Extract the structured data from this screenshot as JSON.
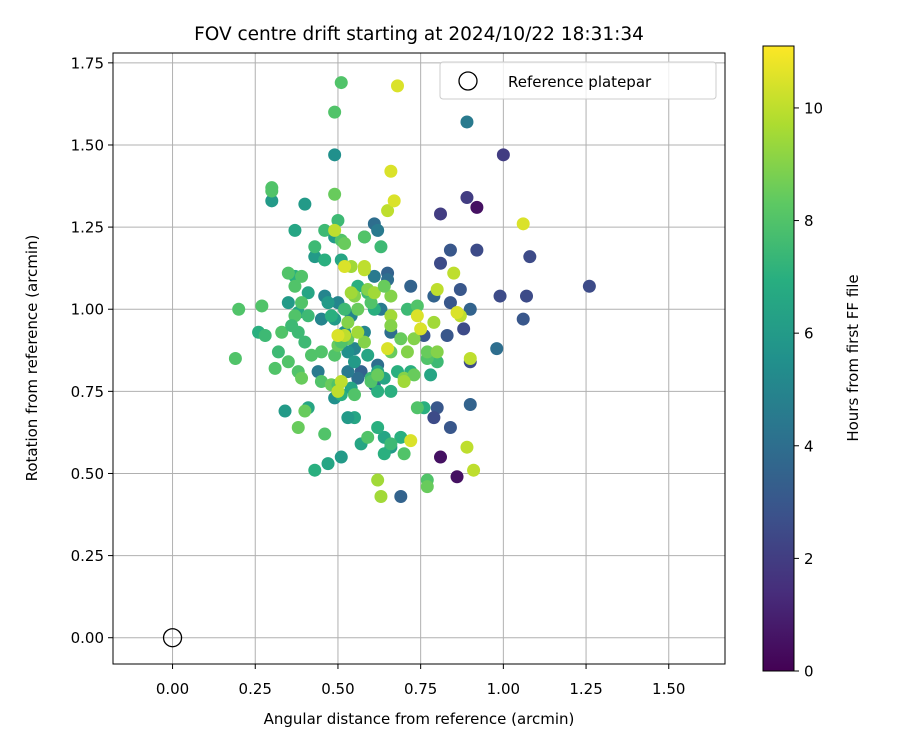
{
  "chart_data": {
    "type": "scatter",
    "title": "FOV centre drift starting at 2024/10/22 18:31:34",
    "xlabel": "Angular distance from reference (arcmin)",
    "ylabel": "Rotation from reference (arcmin)",
    "xlim": [
      -0.18,
      1.67
    ],
    "ylim": [
      -0.08,
      1.78
    ],
    "xticks": [
      "0.00",
      "0.25",
      "0.50",
      "0.75",
      "1.00",
      "1.25",
      "1.50"
    ],
    "yticks": [
      "0.00",
      "0.25",
      "0.50",
      "0.75",
      "1.00",
      "1.25",
      "1.50",
      "1.75"
    ],
    "grid": true,
    "legend": {
      "position": "top-right",
      "entries": [
        "Reference platepar"
      ]
    },
    "reference": {
      "x": 0.0,
      "y": 0.0
    },
    "colorbar": {
      "label": "Hours from first FF file",
      "colormap": "viridis",
      "range": [
        0,
        11.1
      ],
      "ticks": [
        "0",
        "2",
        "4",
        "6",
        "8",
        "10"
      ]
    },
    "points": [
      [
        0.92,
        1.31,
        0.5
      ],
      [
        0.81,
        0.55,
        0.5
      ],
      [
        0.86,
        0.49,
        0.5
      ],
      [
        0.89,
        1.34,
        2.0
      ],
      [
        1.0,
        1.47,
        2.0
      ],
      [
        0.81,
        1.29,
        2.0
      ],
      [
        1.26,
        1.07,
        2.5
      ],
      [
        1.08,
        1.16,
        2.5
      ],
      [
        1.07,
        1.04,
        2.5
      ],
      [
        1.06,
        0.97,
        3.0
      ],
      [
        0.99,
        1.04,
        2.5
      ],
      [
        0.92,
        1.18,
        2.5
      ],
      [
        0.84,
        1.18,
        3.0
      ],
      [
        0.81,
        1.14,
        2.5
      ],
      [
        0.87,
        1.06,
        3.0
      ],
      [
        0.84,
        1.02,
        3.0
      ],
      [
        0.9,
        1.0,
        3.5
      ],
      [
        0.88,
        0.94,
        2.5
      ],
      [
        0.9,
        0.84,
        2.5
      ],
      [
        0.83,
        0.92,
        3.0
      ],
      [
        0.8,
        0.7,
        3.0
      ],
      [
        0.79,
        0.67,
        2.5
      ],
      [
        0.84,
        0.64,
        3.0
      ],
      [
        0.9,
        0.71,
        3.5
      ],
      [
        0.98,
        0.88,
        4.0
      ],
      [
        0.69,
        0.43,
        3.5
      ],
      [
        0.89,
        1.57,
        4.5
      ],
      [
        0.79,
        1.04,
        3.5
      ],
      [
        0.76,
        0.92,
        3.0
      ],
      [
        0.72,
        1.07,
        3.5
      ],
      [
        0.65,
        1.11,
        3.5
      ],
      [
        0.61,
        1.26,
        4.0
      ],
      [
        0.62,
        1.24,
        4.5
      ],
      [
        0.58,
        1.22,
        4.0
      ],
      [
        0.61,
        1.1,
        4.5
      ],
      [
        0.65,
        1.09,
        4.0
      ],
      [
        0.63,
        1.0,
        4.5
      ],
      [
        0.66,
        0.93,
        4.0
      ],
      [
        0.62,
        0.83,
        4.0
      ],
      [
        0.61,
        0.77,
        4.0
      ],
      [
        0.57,
        0.81,
        3.5
      ],
      [
        0.56,
        0.79,
        4.0
      ],
      [
        0.53,
        0.81,
        4.5
      ],
      [
        0.55,
        0.88,
        5.0
      ],
      [
        0.58,
        0.93,
        5.0
      ],
      [
        0.54,
        0.98,
        5.0
      ],
      [
        0.5,
        1.02,
        5.0
      ],
      [
        0.46,
        1.04,
        5.0
      ],
      [
        0.45,
        0.97,
        5.0
      ],
      [
        0.44,
        0.81,
        4.5
      ],
      [
        0.49,
        1.47,
        5.5
      ],
      [
        0.3,
        1.33,
        6.0
      ],
      [
        0.4,
        1.32,
        6.0
      ],
      [
        0.37,
        1.24,
        6.5
      ],
      [
        0.49,
        1.22,
        6.0
      ],
      [
        0.51,
        1.15,
        6.5
      ],
      [
        0.43,
        1.16,
        6.0
      ],
      [
        0.46,
        1.15,
        7.0
      ],
      [
        0.37,
        1.1,
        7.0
      ],
      [
        0.41,
        1.05,
        6.5
      ],
      [
        0.35,
        1.02,
        6.0
      ],
      [
        0.38,
        0.99,
        6.5
      ],
      [
        0.47,
        1.02,
        6.0
      ],
      [
        0.49,
        0.97,
        6.0
      ],
      [
        0.52,
        0.93,
        5.5
      ],
      [
        0.53,
        0.87,
        5.5
      ],
      [
        0.55,
        0.84,
        6.0
      ],
      [
        0.59,
        0.86,
        6.5
      ],
      [
        0.62,
        0.81,
        6.5
      ],
      [
        0.64,
        0.79,
        6.5
      ],
      [
        0.66,
        0.75,
        7.0
      ],
      [
        0.68,
        0.81,
        7.0
      ],
      [
        0.64,
        0.61,
        6.5
      ],
      [
        0.66,
        0.58,
        6.0
      ],
      [
        0.69,
        0.61,
        7.0
      ],
      [
        0.64,
        0.56,
        7.0
      ],
      [
        0.57,
        0.59,
        6.5
      ],
      [
        0.62,
        0.64,
        7.0
      ],
      [
        0.55,
        0.67,
        6.5
      ],
      [
        0.53,
        0.67,
        6.0
      ],
      [
        0.51,
        0.55,
        6.0
      ],
      [
        0.47,
        0.53,
        6.5
      ],
      [
        0.43,
        0.51,
        7.0
      ],
      [
        0.41,
        0.7,
        6.5
      ],
      [
        0.34,
        0.69,
        6.0
      ],
      [
        0.49,
        0.73,
        5.5
      ],
      [
        0.51,
        0.74,
        7.0
      ],
      [
        0.54,
        0.76,
        6.5
      ],
      [
        0.6,
        0.79,
        7.5
      ],
      [
        0.62,
        0.75,
        7.0
      ],
      [
        0.72,
        0.81,
        7.0
      ],
      [
        0.76,
        0.7,
        7.0
      ],
      [
        0.78,
        0.8,
        6.5
      ],
      [
        0.8,
        0.84,
        7.5
      ],
      [
        0.77,
        0.85,
        8.0
      ],
      [
        0.71,
        1.0,
        7.5
      ],
      [
        0.74,
        1.01,
        8.0
      ],
      [
        0.61,
        1.0,
        7.0
      ],
      [
        0.59,
        1.05,
        7.5
      ],
      [
        0.6,
        1.02,
        8.0
      ],
      [
        0.56,
        1.07,
        7.0
      ],
      [
        0.52,
        1.0,
        7.5
      ],
      [
        0.48,
        0.98,
        7.0
      ],
      [
        0.41,
        0.98,
        7.5
      ],
      [
        0.39,
        1.02,
        8.0
      ],
      [
        0.37,
        1.07,
        8.0
      ],
      [
        0.39,
        1.1,
        8.0
      ],
      [
        0.35,
        1.11,
        8.0
      ],
      [
        0.43,
        1.19,
        7.5
      ],
      [
        0.46,
        1.24,
        7.5
      ],
      [
        0.5,
        1.27,
        7.5
      ],
      [
        0.51,
        1.21,
        8.0
      ],
      [
        0.52,
        1.2,
        8.5
      ],
      [
        0.58,
        1.22,
        8.0
      ],
      [
        0.63,
        1.19,
        7.5
      ],
      [
        0.3,
        1.36,
        8.0
      ],
      [
        0.3,
        1.37,
        8.0
      ],
      [
        0.49,
        1.35,
        8.5
      ],
      [
        0.51,
        1.69,
        8.0
      ],
      [
        0.49,
        1.6,
        8.0
      ],
      [
        0.2,
        1.0,
        8.0
      ],
      [
        0.27,
        1.01,
        8.0
      ],
      [
        0.26,
        0.93,
        7.0
      ],
      [
        0.28,
        0.92,
        7.5
      ],
      [
        0.33,
        0.93,
        8.0
      ],
      [
        0.38,
        0.93,
        7.5
      ],
      [
        0.37,
        0.98,
        8.0
      ],
      [
        0.36,
        0.95,
        7.5
      ],
      [
        0.32,
        0.87,
        7.5
      ],
      [
        0.35,
        0.84,
        8.0
      ],
      [
        0.4,
        0.9,
        7.5
      ],
      [
        0.42,
        0.86,
        8.0
      ],
      [
        0.45,
        0.87,
        8.0
      ],
      [
        0.49,
        0.86,
        8.0
      ],
      [
        0.5,
        0.89,
        8.5
      ],
      [
        0.53,
        0.91,
        8.5
      ],
      [
        0.51,
        0.9,
        8.0
      ],
      [
        0.19,
        0.85,
        8.0
      ],
      [
        0.31,
        0.82,
        8.0
      ],
      [
        0.38,
        0.81,
        8.0
      ],
      [
        0.39,
        0.79,
        8.5
      ],
      [
        0.45,
        0.78,
        8.0
      ],
      [
        0.48,
        0.77,
        8.5
      ],
      [
        0.5,
        0.77,
        8.0
      ],
      [
        0.55,
        0.74,
        8.0
      ],
      [
        0.6,
        0.78,
        8.0
      ],
      [
        0.62,
        0.8,
        8.5
      ],
      [
        0.7,
        0.79,
        9.0
      ],
      [
        0.73,
        0.8,
        8.5
      ],
      [
        0.77,
        0.87,
        8.5
      ],
      [
        0.8,
        0.87,
        9.0
      ],
      [
        0.74,
        0.7,
        8.0
      ],
      [
        0.7,
        0.56,
        8.0
      ],
      [
        0.66,
        0.59,
        7.5
      ],
      [
        0.59,
        0.61,
        8.0
      ],
      [
        0.46,
        0.62,
        8.0
      ],
      [
        0.4,
        0.69,
        8.5
      ],
      [
        0.38,
        0.64,
        8.5
      ],
      [
        0.77,
        0.48,
        8.0
      ],
      [
        0.77,
        0.46,
        8.5
      ],
      [
        0.63,
        0.43,
        9.5
      ],
      [
        0.62,
        0.48,
        9.5
      ],
      [
        0.56,
        1.0,
        8.5
      ],
      [
        0.59,
        1.06,
        9.0
      ],
      [
        0.61,
        1.05,
        9.5
      ],
      [
        0.55,
        1.04,
        9.0
      ],
      [
        0.54,
        1.05,
        9.5
      ],
      [
        0.54,
        1.13,
        9.5
      ],
      [
        0.58,
        1.13,
        10.0
      ],
      [
        0.58,
        1.12,
        10.0
      ],
      [
        0.66,
        1.04,
        9.0
      ],
      [
        0.64,
        1.07,
        8.5
      ],
      [
        0.66,
        0.98,
        9.5
      ],
      [
        0.66,
        0.95,
        9.0
      ],
      [
        0.66,
        0.87,
        8.5
      ],
      [
        0.69,
        0.91,
        8.5
      ],
      [
        0.71,
        0.87,
        9.0
      ],
      [
        0.73,
        0.91,
        9.0
      ],
      [
        0.79,
        0.96,
        9.5
      ],
      [
        0.85,
        1.11,
        10.0
      ],
      [
        0.8,
        1.06,
        10.0
      ],
      [
        0.75,
        0.94,
        10.5
      ],
      [
        0.74,
        0.98,
        10.5
      ],
      [
        0.87,
        0.98,
        10.0
      ],
      [
        0.9,
        0.85,
        10.0
      ],
      [
        0.86,
        0.99,
        10.5
      ],
      [
        0.89,
        0.58,
        10.0
      ],
      [
        0.91,
        0.51,
        10.0
      ],
      [
        0.72,
        0.6,
        10.5
      ],
      [
        0.51,
        0.78,
        10.0
      ],
      [
        0.5,
        0.75,
        10.0
      ],
      [
        0.58,
        0.9,
        9.0
      ],
      [
        0.56,
        0.93,
        9.5
      ],
      [
        0.53,
        0.96,
        9.0
      ],
      [
        0.52,
        0.92,
        10.0
      ],
      [
        0.5,
        0.92,
        10.5
      ],
      [
        0.65,
        0.88,
        10.5
      ],
      [
        0.7,
        0.78,
        9.5
      ],
      [
        0.49,
        1.24,
        10.0
      ],
      [
        0.52,
        1.13,
        10.5
      ],
      [
        0.65,
        1.3,
        10.0
      ],
      [
        0.67,
        1.33,
        10.5
      ],
      [
        0.66,
        1.42,
        10.5
      ],
      [
        1.06,
        1.26,
        10.5
      ],
      [
        0.68,
        1.68,
        10.5
      ]
    ]
  }
}
